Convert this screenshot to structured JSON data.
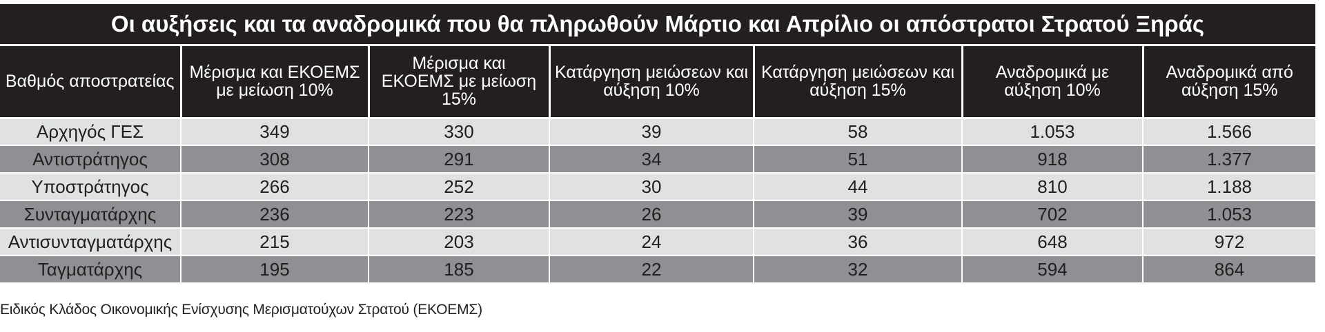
{
  "title": "Οι αυξήσεις και τα αναδρομικά που θα πληρωθούν Μάρτιο και Απρίλιο οι απόστρατοι Στρατού Ξηράς",
  "source_note": "Ειδικός Κλάδος Οικονομικής Ενίσχυσης Μερισματούχων Στρατού (ΕΚΟΕΜΣ)",
  "colors": {
    "header_bg": "#231f20",
    "row_light": "#e0e1e3",
    "row_dark": "#8e9094"
  },
  "chart_data": {
    "type": "table",
    "title": "Οι αυξήσεις και τα αναδρομικά που θα πληρωθούν Μάρτιο και Απρίλιο οι απόστρατοι Στρατού Ξηράς",
    "columns": [
      "Βαθμός αποστρατείας",
      "Μέρισμα και ΕΚΟΕΜΣ με μείωση 10%",
      "Μέρισμα και ΕΚΟΕΜΣ με μείωση 15%",
      "Κατάργηση μειώσεων και αύξηση 10%",
      "Κατάργηση μειώσεων και αύξηση 15%",
      "Αναδρομικά με αύξηση 10%",
      "Αναδρομικά από αύξηση 15%"
    ],
    "rows": [
      [
        "Αρχηγός ΓΕΣ",
        "349",
        "330",
        "39",
        "58",
        "1.053",
        "1.566"
      ],
      [
        "Αντιστράτηγος",
        "308",
        "291",
        "34",
        "51",
        "918",
        "1.377"
      ],
      [
        "Υποστράτηγος",
        "266",
        "252",
        "30",
        "44",
        "810",
        "1.188"
      ],
      [
        "Συνταγματάρχης",
        "236",
        "223",
        "26",
        "39",
        "702",
        "1.053"
      ],
      [
        "Αντισυνταγματάρχης",
        "215",
        "203",
        "24",
        "36",
        "648",
        "972"
      ],
      [
        "Ταγματάρχης",
        "195",
        "185",
        "22",
        "32",
        "594",
        "864"
      ]
    ]
  }
}
